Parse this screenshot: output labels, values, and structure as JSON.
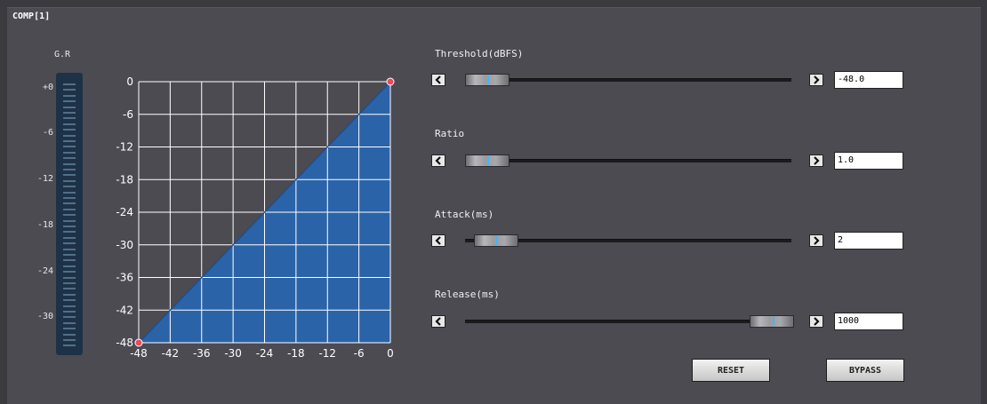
{
  "title": "COMP[1]",
  "gain_reduction": {
    "label": "G.R",
    "scale_labels": [
      "+0",
      "-6",
      "-12",
      "-18",
      "-24",
      "-30"
    ]
  },
  "graph": {
    "y_tick_labels": [
      "0",
      "-6",
      "-12",
      "-18",
      "-24",
      "-30",
      "-36",
      "-42",
      "-48"
    ],
    "x_tick_labels": [
      "-48",
      "-42",
      "-36",
      "-30",
      "-24",
      "-18",
      "-12",
      "-6",
      "0"
    ],
    "fill_color": "#2b63a8",
    "grid_color": "#ffffff",
    "point_color": "#e84a5f"
  },
  "sliders": [
    {
      "label": "Threshold(dBFS)",
      "value": "-48.0",
      "position": 0.0
    },
    {
      "label": "Ratio",
      "value": "1.0",
      "position": 0.0
    },
    {
      "label": "Attack(ms)",
      "value": "2",
      "position": 0.03
    },
    {
      "label": "Release(ms)",
      "value": "1000",
      "position": 1.0
    }
  ],
  "buttons": {
    "reset": "RESET",
    "bypass": "BYPASS"
  }
}
